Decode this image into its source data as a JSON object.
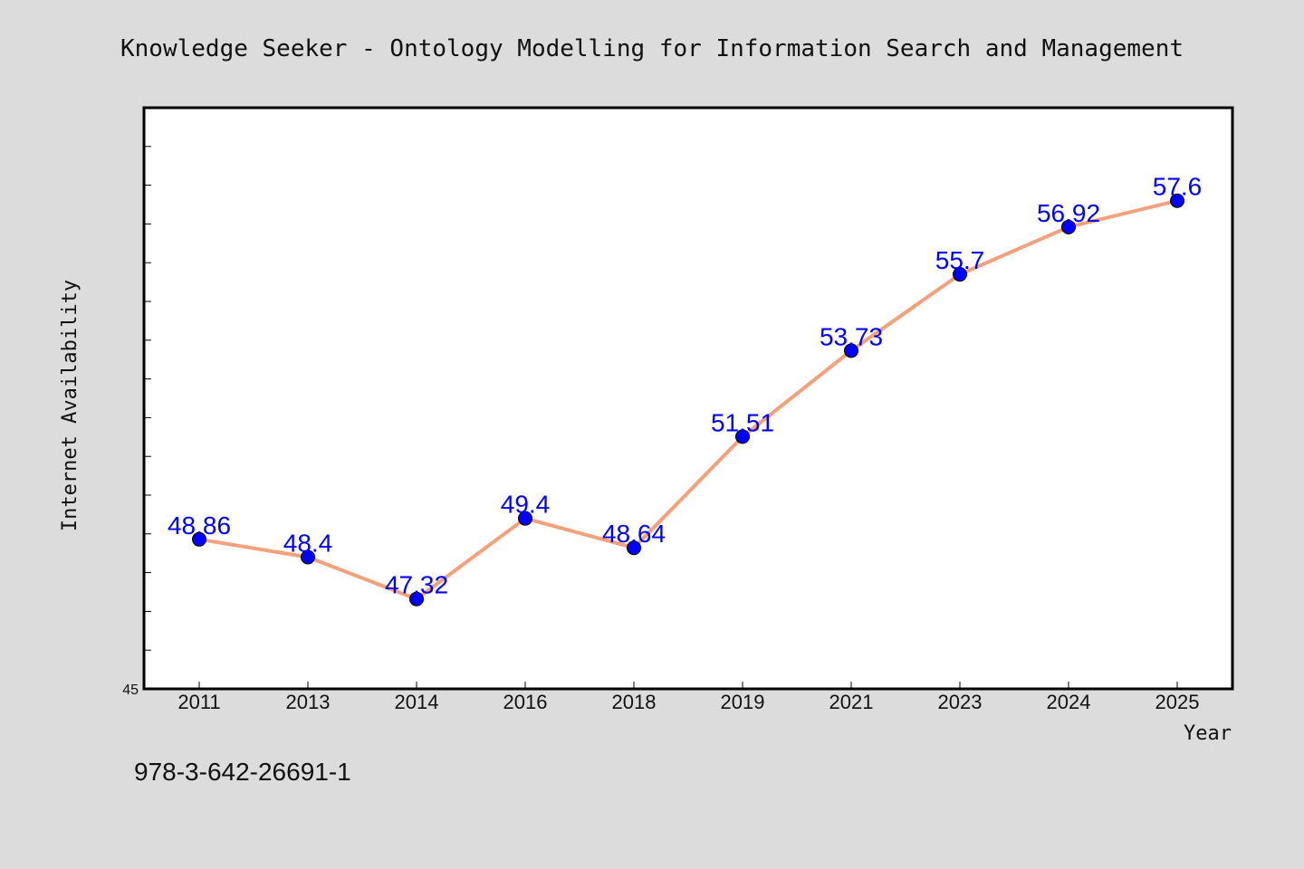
{
  "title": "Knowledge Seeker - Ontology Modelling for Information Search and Management",
  "footer": "978-3-642-26691-1",
  "colors": {
    "background": "#dcdcdc",
    "plot_background": "#ffffff",
    "line": "#f4a07a",
    "marker": "#0000ff",
    "label": "#0000ff"
  },
  "chart_data": {
    "type": "line",
    "xlabel": "Year",
    "ylabel": "Internet Availability",
    "categories": [
      "2011",
      "2013",
      "2014",
      "2016",
      "2018",
      "2019",
      "2021",
      "2023",
      "2024",
      "2025"
    ],
    "series": [
      {
        "values": [
          48.86,
          48.4,
          47.32,
          49.4,
          48.64,
          51.51,
          53.73,
          55.7,
          56.92,
          57.6
        ]
      }
    ],
    "data_labels": [
      "48.86",
      "48.4",
      "47.32",
      "49.4",
      "48.64",
      "51.51",
      "53.73",
      "55.7",
      "56.92",
      "57.6"
    ],
    "ylim": [
      45,
      60
    ],
    "yticks_labeled": [
      "45"
    ],
    "grid": false,
    "legend": "none"
  }
}
